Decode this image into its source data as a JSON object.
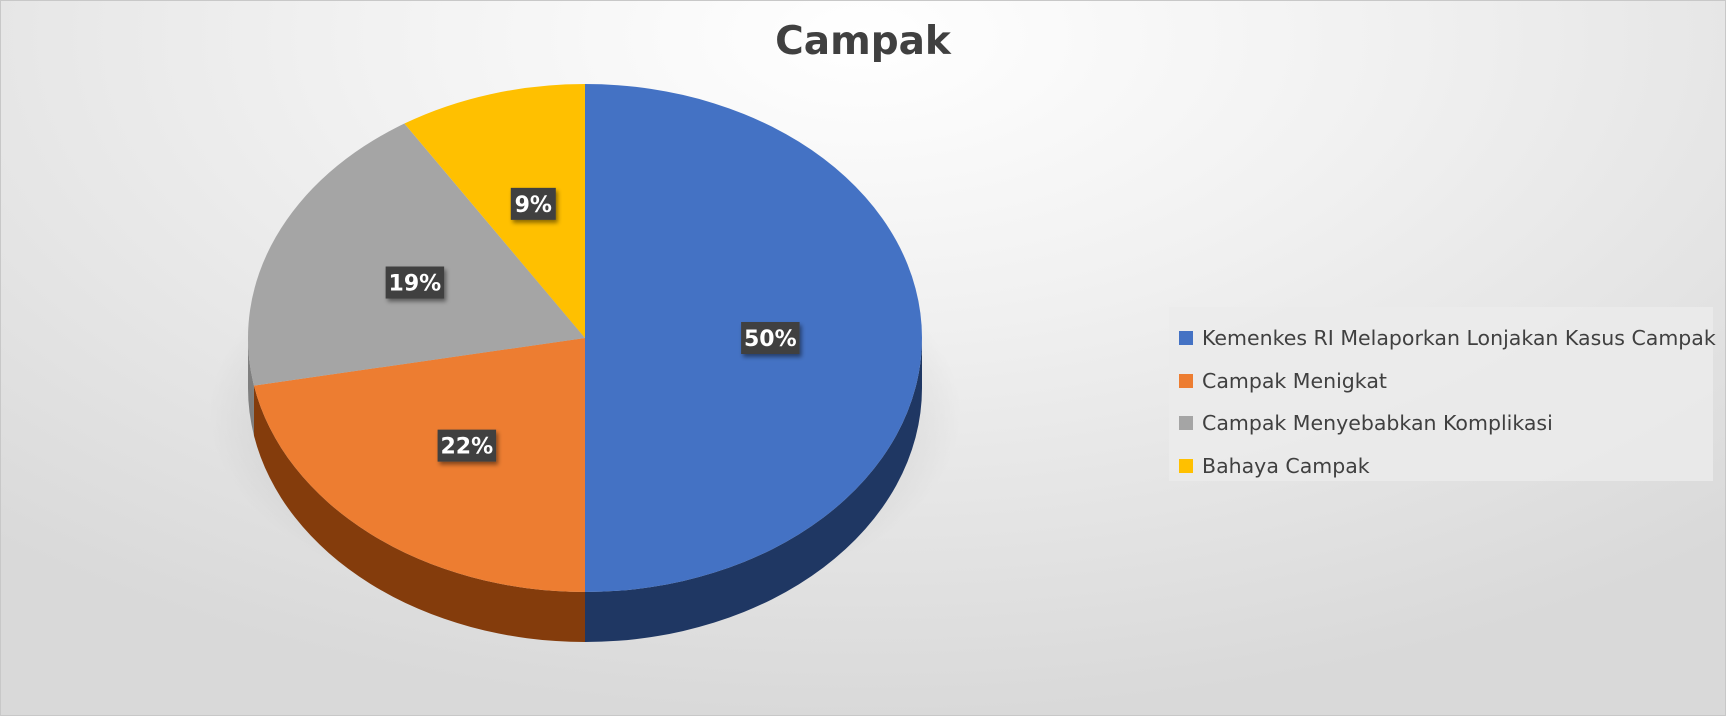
{
  "chart_data": {
    "type": "pie",
    "style": "3d",
    "title": "Campak",
    "categories": [
      "Kemenkes RI Melaporkan Lonjakan Kasus Campak",
      "Campak Menigkat",
      "Campak Menyebabkan Komplikasi",
      "Bahaya Campak"
    ],
    "values": [
      50,
      22,
      19,
      9
    ],
    "labels": [
      "50%",
      "22%",
      "19%",
      "9%"
    ],
    "colors": [
      "#4472C4",
      "#ED7D31",
      "#A5A5A5",
      "#FFC000"
    ],
    "side_colors": [
      "#1F3763",
      "#843C0C",
      "#7F7F7F",
      "#BF9000"
    ],
    "legend_position": "right"
  }
}
